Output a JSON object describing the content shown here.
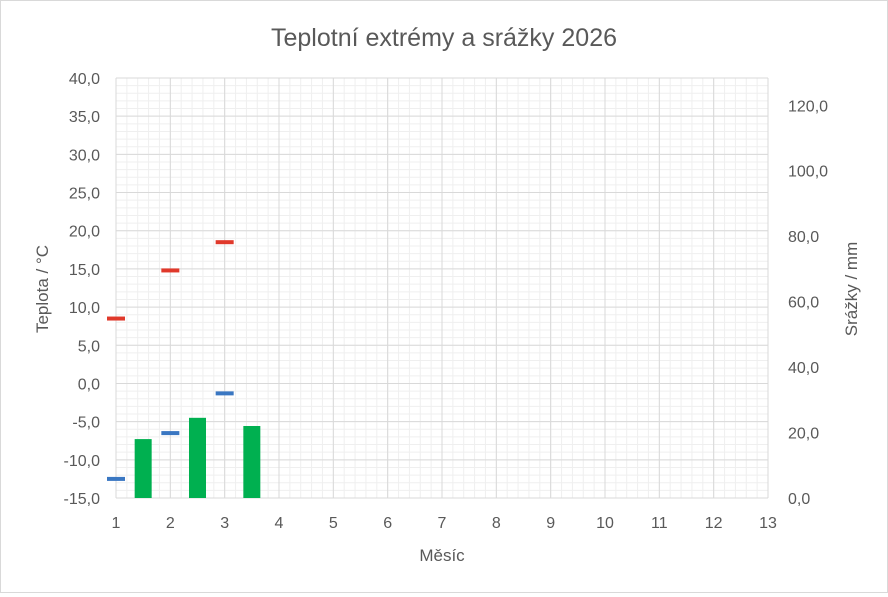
{
  "chart_data": {
    "type": "bar",
    "title": "Teplotní extrémy a srážky 2026",
    "xlabel": "Měsíc",
    "ylabel": "Teplota / °C",
    "y2label": "Srážky / mm",
    "xlim": [
      1,
      13
    ],
    "ylim": [
      -15,
      40
    ],
    "y2lim": [
      0,
      128.33
    ],
    "x_ticks": [
      "1",
      "2",
      "3",
      "4",
      "5",
      "6",
      "7",
      "8",
      "9",
      "10",
      "11",
      "12",
      "13"
    ],
    "y_ticks": [
      "-15,0",
      "-10,0",
      "-5,0",
      "0,0",
      "5,0",
      "10,0",
      "15,0",
      "20,0",
      "25,0",
      "30,0",
      "35,0",
      "40,0"
    ],
    "y2_ticks": [
      "0,0",
      "20,0",
      "40,0",
      "60,0",
      "80,0",
      "100,0",
      "120,0"
    ],
    "grid": true,
    "series": [
      {
        "kind": "marker",
        "color": "#e0392b",
        "points": [
          [
            1,
            8.5
          ],
          [
            2,
            14.8
          ],
          [
            3,
            18.5
          ]
        ]
      },
      {
        "kind": "marker",
        "color": "#3a77c2",
        "points": [
          [
            1,
            -12.5
          ],
          [
            2,
            -6.5
          ],
          [
            3,
            -1.3
          ]
        ]
      },
      {
        "kind": "bar",
        "axis": "secondary",
        "color": "#00b050",
        "points": [
          [
            1.5,
            18
          ],
          [
            2.5,
            24.5
          ],
          [
            3.5,
            22
          ]
        ]
      }
    ]
  }
}
